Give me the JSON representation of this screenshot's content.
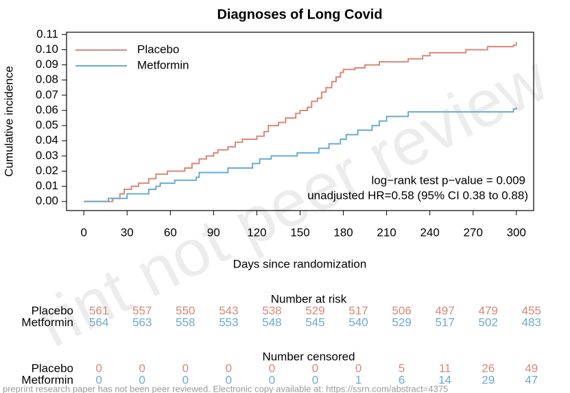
{
  "chart_data": {
    "type": "step",
    "title": "Diagnoses of Long Covid",
    "x_label": "Days since randomization",
    "y_label": "Cumulative incidence",
    "xlim": [
      -12,
      312
    ],
    "ylim": [
      -0.006,
      0.1115
    ],
    "xticks": [
      0,
      30,
      60,
      90,
      120,
      150,
      180,
      210,
      240,
      270,
      300
    ],
    "yticks": [
      {
        "value": 0,
        "label": "0.00"
      },
      {
        "value": 0.01,
        "label": "0.01"
      },
      {
        "value": 0.02,
        "label": "0.02"
      },
      {
        "value": 0.03,
        "label": "0.03"
      },
      {
        "value": 0.04,
        "label": "0.04"
      },
      {
        "value": 0.05,
        "label": "0.05"
      },
      {
        "value": 0.06,
        "label": "0.06"
      },
      {
        "value": 0.07,
        "label": "0.07"
      },
      {
        "value": 0.08,
        "label": "0.08"
      },
      {
        "value": 0.09,
        "label": "0.09"
      },
      {
        "value": 0.1,
        "label": "0.10"
      },
      {
        "value": 0.11,
        "label": "0.11"
      }
    ],
    "legend_position": "top-left",
    "series": [
      {
        "name": "Placebo",
        "color": "#d98878",
        "x": [
          0,
          20,
          25,
          28,
          33,
          38,
          45,
          50,
          58,
          70,
          75,
          80,
          85,
          90,
          93,
          100,
          105,
          110,
          120,
          125,
          128,
          135,
          140,
          147,
          150,
          155,
          158,
          162,
          165,
          168,
          172,
          175,
          178,
          180,
          188,
          195,
          205,
          225,
          235,
          240,
          265,
          280,
          298,
          300
        ],
        "values": [
          0,
          0.002,
          0.005,
          0.008,
          0.01,
          0.012,
          0.015,
          0.018,
          0.02,
          0.022,
          0.025,
          0.028,
          0.03,
          0.032,
          0.034,
          0.036,
          0.039,
          0.041,
          0.043,
          0.046,
          0.05,
          0.052,
          0.055,
          0.058,
          0.06,
          0.062,
          0.066,
          0.068,
          0.072,
          0.075,
          0.079,
          0.082,
          0.085,
          0.087,
          0.088,
          0.09,
          0.092,
          0.094,
          0.096,
          0.098,
          0.1,
          0.102,
          0.103,
          0.105
        ]
      },
      {
        "name": "Metformin",
        "color": "#6aaad4",
        "x": [
          0,
          17,
          30,
          45,
          50,
          53,
          63,
          78,
          80,
          100,
          117,
          122,
          130,
          148,
          163,
          170,
          178,
          182,
          190,
          200,
          205,
          210,
          225,
          298,
          300
        ],
        "values": [
          0,
          0.002,
          0.005,
          0.008,
          0.01,
          0.012,
          0.014,
          0.016,
          0.019,
          0.022,
          0.025,
          0.028,
          0.03,
          0.032,
          0.035,
          0.038,
          0.041,
          0.044,
          0.047,
          0.05,
          0.053,
          0.056,
          0.059,
          0.061,
          0.062
        ]
      }
    ],
    "annotations": [
      "log−rank test p−value = 0.009",
      "unadjusted HR=0.58 (95% CI 0.38 to 0.88)"
    ],
    "tables": [
      {
        "title": "Number at risk",
        "rows": [
          {
            "name": "Placebo",
            "color": "#d98878",
            "values": [
              561,
              557,
              550,
              543,
              538,
              529,
              517,
              506,
              497,
              479,
              455
            ]
          },
          {
            "name": "Metformin",
            "color": "#6aaad4",
            "values": [
              564,
              563,
              558,
              553,
              548,
              545,
              540,
              529,
              517,
              502,
              483
            ]
          }
        ]
      },
      {
        "title": "Number censored",
        "rows": [
          {
            "name": "Placebo",
            "color": "#d98878",
            "values": [
              0,
              0,
              0,
              0,
              0,
              0,
              0,
              5,
              11,
              26,
              49
            ]
          },
          {
            "name": "Metformin",
            "color": "#6aaad4",
            "values": [
              0,
              0,
              0,
              0,
              0,
              0,
              1,
              6,
              14,
              29,
              47
            ]
          }
        ]
      }
    ],
    "watermark": "rint not peer review",
    "footer": "preprint research paper has not been peer reviewed. Electronic copy available at: https://ssrn.com/abstract=4375"
  }
}
